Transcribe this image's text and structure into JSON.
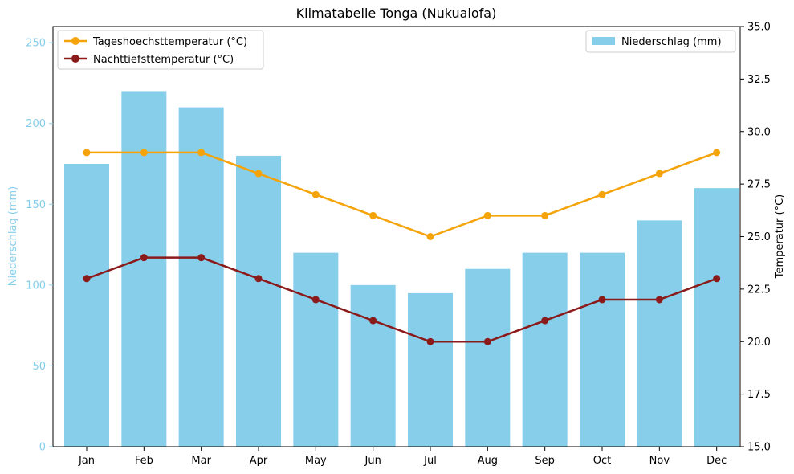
{
  "chart_data": {
    "type": "bar",
    "title": "Klimatabelle Tonga (Nukualofa)",
    "categories": [
      "Jan",
      "Feb",
      "Mar",
      "Apr",
      "May",
      "Jun",
      "Jul",
      "Aug",
      "Sep",
      "Oct",
      "Nov",
      "Dec"
    ],
    "left_axis": {
      "label": "Niederschlag (mm)",
      "ylim": [
        0,
        260
      ],
      "ticks": [
        "0",
        "50",
        "100",
        "150",
        "200",
        "250"
      ],
      "color": "#87ceeb"
    },
    "right_axis": {
      "label": "Temperatur (°C)",
      "ylim": [
        15,
        35
      ],
      "ticks": [
        "15.0",
        "17.5",
        "20.0",
        "22.5",
        "25.0",
        "27.5",
        "30.0",
        "32.5",
        "35.0"
      ]
    },
    "series": [
      {
        "name": "Niederschlag (mm)",
        "type": "bar",
        "axis": "left",
        "color": "#87ceeb",
        "values": [
          175,
          220,
          210,
          180,
          120,
          100,
          95,
          110,
          120,
          120,
          140,
          160
        ]
      },
      {
        "name": "Tageshoechsttemperatur (°C)",
        "type": "line",
        "axis": "right",
        "color": "#f5a30a",
        "values": [
          29,
          29,
          29,
          28,
          27,
          26,
          25,
          26,
          26,
          27,
          28,
          29
        ]
      },
      {
        "name": "Nachttiefsttemperatur (°C)",
        "type": "line",
        "axis": "right",
        "color": "#8b1a1a",
        "values": [
          23,
          24,
          24,
          23,
          22,
          21,
          20,
          20,
          21,
          22,
          22,
          23
        ]
      }
    ],
    "legends": {
      "lines_position": "top-left",
      "bars_position": "top-right"
    },
    "grid": false
  }
}
